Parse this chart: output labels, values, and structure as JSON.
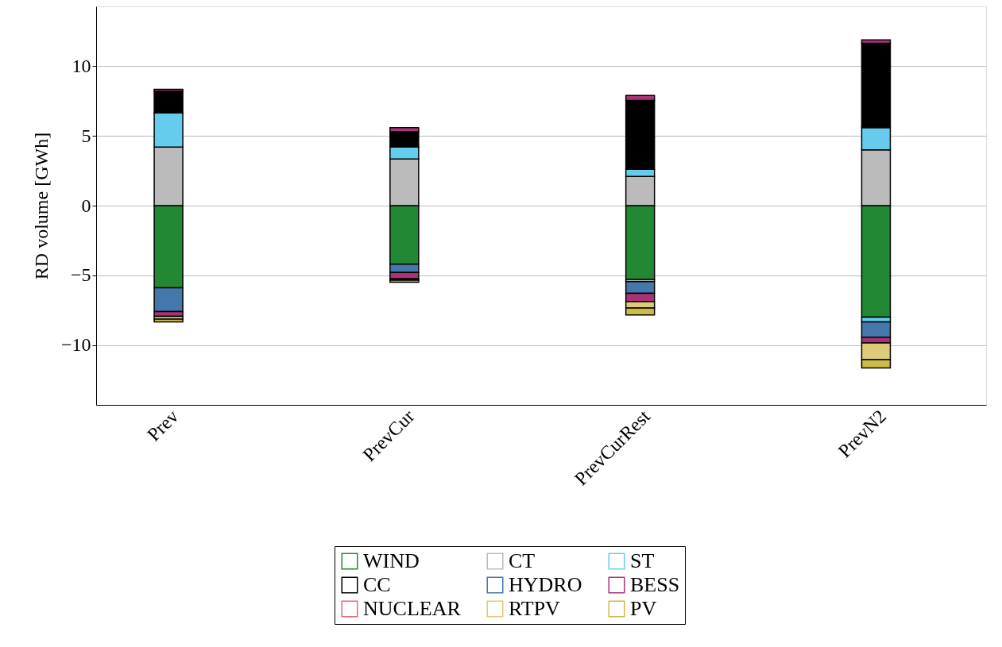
{
  "chart_data": {
    "type": "bar",
    "stacked": true,
    "ylabel": "RD volume [GWh]",
    "categories": [
      "Prev",
      "PrevCur",
      "PrevCurRest",
      "PrevN2"
    ],
    "ylim": [
      -14.3,
      14.3
    ],
    "yticks": [
      -10,
      -5,
      0,
      5,
      10
    ],
    "grid": "y",
    "legend": "bottom",
    "series": [
      {
        "name": "WIND",
        "color": "#228833",
        "values": [
          -5.9,
          -4.2,
          -5.3,
          -8.0
        ]
      },
      {
        "name": "CT",
        "color": "#bbbbbb",
        "values": [
          4.2,
          3.35,
          2.1,
          4.0
        ]
      },
      {
        "name": "ST",
        "color": "#66ccee",
        "values": [
          2.45,
          0.85,
          0.5,
          1.6
        ]
      },
      {
        "name": "CC",
        "color": "#000000",
        "values": [
          1.55,
          1.1,
          4.95,
          6.05
        ]
      },
      {
        "color": "#bbbbbb",
        "values": [
          null,
          null,
          -0.15,
          null
        ]
      },
      {
        "color": "#66ccee",
        "values": [
          null,
          null,
          null,
          -0.35
        ]
      },
      {
        "name": "HYDRO",
        "color": "#4477aa",
        "values": [
          -1.7,
          -0.6,
          -0.85,
          -1.1
        ]
      },
      {
        "name": "BESS",
        "color": "#aa3377",
        "values": [
          0.15,
          0.3,
          0.35,
          0.25
        ]
      },
      {
        "color": "#aa3377",
        "values": [
          -0.35,
          -0.45,
          -0.6,
          -0.4
        ]
      },
      {
        "name": "NUCLEAR",
        "color": "#ee6677",
        "values": [
          null,
          null,
          null,
          null
        ]
      },
      {
        "name": "RTPV",
        "color": "#ddcc77",
        "values": [
          -0.2,
          -0.1,
          -0.45,
          -1.2
        ]
      },
      {
        "name": "PV",
        "color": "#ccbb44",
        "values": [
          -0.2,
          -0.15,
          -0.5,
          -0.6
        ]
      }
    ]
  }
}
